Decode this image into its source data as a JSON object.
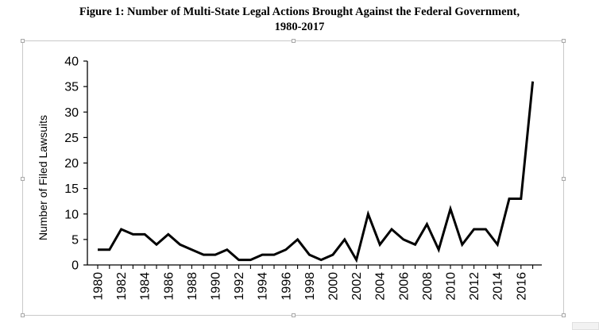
{
  "chart_data": {
    "type": "line",
    "title_line1": "Figure 1: Number of Multi-State Legal Actions Brought Against the Federal Government,",
    "title_line2": "1980-2017",
    "xlabel": "",
    "ylabel": "Number of Filed Lawsuits",
    "xlim": [
      1980,
      2017
    ],
    "ylim": [
      0,
      40
    ],
    "yticks": [
      0,
      5,
      10,
      15,
      20,
      25,
      30,
      35,
      40
    ],
    "xticks": [
      1980,
      1982,
      1984,
      1986,
      1988,
      1990,
      1992,
      1994,
      1996,
      1998,
      2000,
      2002,
      2004,
      2006,
      2008,
      2010,
      2012,
      2014,
      2016
    ],
    "grid": false,
    "legend": "none",
    "line_color": "#000000",
    "x": [
      1980,
      1981,
      1982,
      1983,
      1984,
      1985,
      1986,
      1987,
      1988,
      1989,
      1990,
      1991,
      1992,
      1993,
      1994,
      1995,
      1996,
      1997,
      1998,
      1999,
      2000,
      2001,
      2002,
      2003,
      2004,
      2005,
      2006,
      2007,
      2008,
      2009,
      2010,
      2011,
      2012,
      2013,
      2014,
      2015,
      2016,
      2017
    ],
    "values": [
      3,
      3,
      7,
      6,
      6,
      4,
      6,
      4,
      3,
      2,
      2,
      3,
      1,
      1,
      2,
      2,
      3,
      5,
      2,
      1,
      2,
      5,
      1,
      10,
      4,
      7,
      5,
      4,
      8,
      3,
      11,
      4,
      7,
      7,
      4,
      13,
      13,
      36
    ]
  }
}
